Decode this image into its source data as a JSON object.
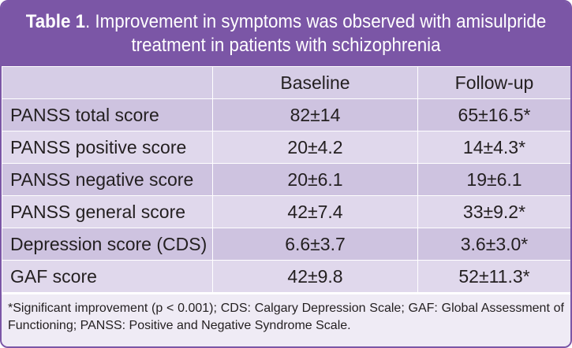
{
  "title": {
    "prefix": "Table 1",
    "line1_rest": ". Improvement in symptoms was observed with amisulpride",
    "line2": "treatment in patients with schizophrenia"
  },
  "table": {
    "headers": [
      "",
      "Baseline",
      "Follow-up"
    ],
    "rows": [
      {
        "label": "PANSS total score",
        "baseline": "82±14",
        "followup": "65±16.5*"
      },
      {
        "label": "PANSS positive score",
        "baseline": "20±4.2",
        "followup": "14±4.3*"
      },
      {
        "label": "PANSS negative score",
        "baseline": "20±6.1",
        "followup": "19±6.1"
      },
      {
        "label": "PANSS general score",
        "baseline": "42±7.4",
        "followup": "33±9.2*"
      },
      {
        "label": "Depression score (CDS)",
        "baseline": "6.6±3.7",
        "followup": "3.6±3.0*"
      },
      {
        "label": "GAF score",
        "baseline": "42±9.8",
        "followup": "52±11.3*"
      }
    ]
  },
  "footnote": "*Significant improvement (p < 0.001); CDS: Calgary Depression Scale; GAF: Global Assessment of Functioning; PANSS: Positive and Negative Syndrome Scale.",
  "colors": {
    "header_purple": "#7b56a6",
    "row_dark": "#cec3e0",
    "row_light": "#e0d8ec"
  }
}
